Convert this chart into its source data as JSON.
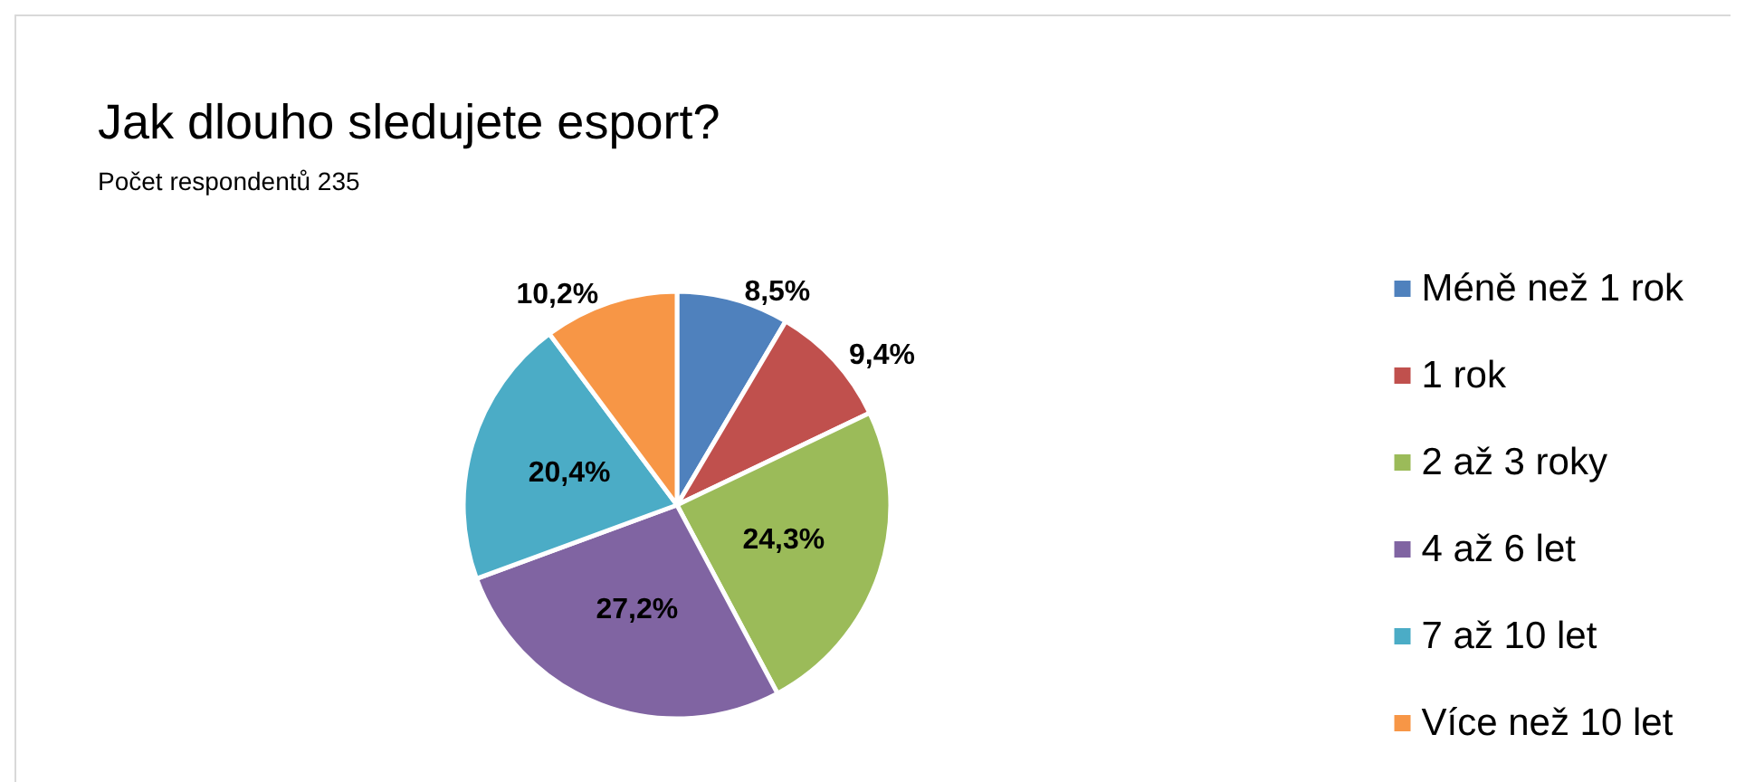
{
  "chart_data": {
    "type": "pie",
    "title": "Jak dlouho sledujete esport?",
    "subtitle": "Počet respondentů 235",
    "categories": [
      "Méně než 1 rok",
      "1 rok",
      "2 až 3 roky",
      "4 až 6 let",
      "7 až 10 let",
      "Více než 10 let"
    ],
    "values": [
      8.5,
      9.4,
      24.3,
      27.2,
      20.4,
      10.2
    ],
    "value_labels": [
      "8,5%",
      "9,4%",
      "24,3%",
      "27,2%",
      "20,4%",
      "10,2%"
    ],
    "colors": [
      "#4f81bd",
      "#c0504d",
      "#9bbb59",
      "#8064a2",
      "#4bacc6",
      "#f79646"
    ],
    "legend": "right"
  }
}
